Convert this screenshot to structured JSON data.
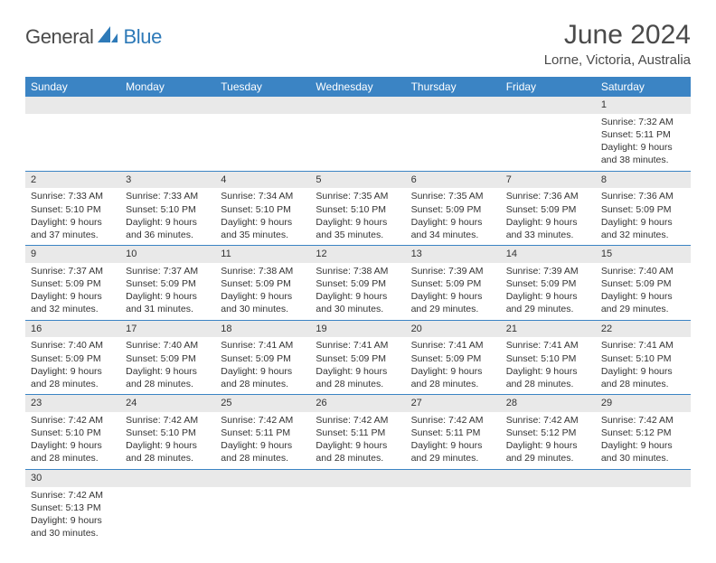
{
  "logo": {
    "general": "General",
    "blue": "Blue"
  },
  "header": {
    "month": "June 2024",
    "location": "Lorne, Victoria, Australia"
  },
  "colors": {
    "header_bg": "#3b84c4",
    "header_text": "#ffffff",
    "daynum_bg": "#e9e9e9",
    "border": "#3b84c4",
    "text": "#333333",
    "logo_gray": "#4a4a4a",
    "logo_blue": "#2e7ab8"
  },
  "weekdays": [
    "Sunday",
    "Monday",
    "Tuesday",
    "Wednesday",
    "Thursday",
    "Friday",
    "Saturday"
  ],
  "weeks": [
    [
      null,
      null,
      null,
      null,
      null,
      null,
      {
        "n": "1",
        "sr": "Sunrise: 7:32 AM",
        "ss": "Sunset: 5:11 PM",
        "d1": "Daylight: 9 hours",
        "d2": "and 38 minutes."
      }
    ],
    [
      {
        "n": "2",
        "sr": "Sunrise: 7:33 AM",
        "ss": "Sunset: 5:10 PM",
        "d1": "Daylight: 9 hours",
        "d2": "and 37 minutes."
      },
      {
        "n": "3",
        "sr": "Sunrise: 7:33 AM",
        "ss": "Sunset: 5:10 PM",
        "d1": "Daylight: 9 hours",
        "d2": "and 36 minutes."
      },
      {
        "n": "4",
        "sr": "Sunrise: 7:34 AM",
        "ss": "Sunset: 5:10 PM",
        "d1": "Daylight: 9 hours",
        "d2": "and 35 minutes."
      },
      {
        "n": "5",
        "sr": "Sunrise: 7:35 AM",
        "ss": "Sunset: 5:10 PM",
        "d1": "Daylight: 9 hours",
        "d2": "and 35 minutes."
      },
      {
        "n": "6",
        "sr": "Sunrise: 7:35 AM",
        "ss": "Sunset: 5:09 PM",
        "d1": "Daylight: 9 hours",
        "d2": "and 34 minutes."
      },
      {
        "n": "7",
        "sr": "Sunrise: 7:36 AM",
        "ss": "Sunset: 5:09 PM",
        "d1": "Daylight: 9 hours",
        "d2": "and 33 minutes."
      },
      {
        "n": "8",
        "sr": "Sunrise: 7:36 AM",
        "ss": "Sunset: 5:09 PM",
        "d1": "Daylight: 9 hours",
        "d2": "and 32 minutes."
      }
    ],
    [
      {
        "n": "9",
        "sr": "Sunrise: 7:37 AM",
        "ss": "Sunset: 5:09 PM",
        "d1": "Daylight: 9 hours",
        "d2": "and 32 minutes."
      },
      {
        "n": "10",
        "sr": "Sunrise: 7:37 AM",
        "ss": "Sunset: 5:09 PM",
        "d1": "Daylight: 9 hours",
        "d2": "and 31 minutes."
      },
      {
        "n": "11",
        "sr": "Sunrise: 7:38 AM",
        "ss": "Sunset: 5:09 PM",
        "d1": "Daylight: 9 hours",
        "d2": "and 30 minutes."
      },
      {
        "n": "12",
        "sr": "Sunrise: 7:38 AM",
        "ss": "Sunset: 5:09 PM",
        "d1": "Daylight: 9 hours",
        "d2": "and 30 minutes."
      },
      {
        "n": "13",
        "sr": "Sunrise: 7:39 AM",
        "ss": "Sunset: 5:09 PM",
        "d1": "Daylight: 9 hours",
        "d2": "and 29 minutes."
      },
      {
        "n": "14",
        "sr": "Sunrise: 7:39 AM",
        "ss": "Sunset: 5:09 PM",
        "d1": "Daylight: 9 hours",
        "d2": "and 29 minutes."
      },
      {
        "n": "15",
        "sr": "Sunrise: 7:40 AM",
        "ss": "Sunset: 5:09 PM",
        "d1": "Daylight: 9 hours",
        "d2": "and 29 minutes."
      }
    ],
    [
      {
        "n": "16",
        "sr": "Sunrise: 7:40 AM",
        "ss": "Sunset: 5:09 PM",
        "d1": "Daylight: 9 hours",
        "d2": "and 28 minutes."
      },
      {
        "n": "17",
        "sr": "Sunrise: 7:40 AM",
        "ss": "Sunset: 5:09 PM",
        "d1": "Daylight: 9 hours",
        "d2": "and 28 minutes."
      },
      {
        "n": "18",
        "sr": "Sunrise: 7:41 AM",
        "ss": "Sunset: 5:09 PM",
        "d1": "Daylight: 9 hours",
        "d2": "and 28 minutes."
      },
      {
        "n": "19",
        "sr": "Sunrise: 7:41 AM",
        "ss": "Sunset: 5:09 PM",
        "d1": "Daylight: 9 hours",
        "d2": "and 28 minutes."
      },
      {
        "n": "20",
        "sr": "Sunrise: 7:41 AM",
        "ss": "Sunset: 5:09 PM",
        "d1": "Daylight: 9 hours",
        "d2": "and 28 minutes."
      },
      {
        "n": "21",
        "sr": "Sunrise: 7:41 AM",
        "ss": "Sunset: 5:10 PM",
        "d1": "Daylight: 9 hours",
        "d2": "and 28 minutes."
      },
      {
        "n": "22",
        "sr": "Sunrise: 7:41 AM",
        "ss": "Sunset: 5:10 PM",
        "d1": "Daylight: 9 hours",
        "d2": "and 28 minutes."
      }
    ],
    [
      {
        "n": "23",
        "sr": "Sunrise: 7:42 AM",
        "ss": "Sunset: 5:10 PM",
        "d1": "Daylight: 9 hours",
        "d2": "and 28 minutes."
      },
      {
        "n": "24",
        "sr": "Sunrise: 7:42 AM",
        "ss": "Sunset: 5:10 PM",
        "d1": "Daylight: 9 hours",
        "d2": "and 28 minutes."
      },
      {
        "n": "25",
        "sr": "Sunrise: 7:42 AM",
        "ss": "Sunset: 5:11 PM",
        "d1": "Daylight: 9 hours",
        "d2": "and 28 minutes."
      },
      {
        "n": "26",
        "sr": "Sunrise: 7:42 AM",
        "ss": "Sunset: 5:11 PM",
        "d1": "Daylight: 9 hours",
        "d2": "and 28 minutes."
      },
      {
        "n": "27",
        "sr": "Sunrise: 7:42 AM",
        "ss": "Sunset: 5:11 PM",
        "d1": "Daylight: 9 hours",
        "d2": "and 29 minutes."
      },
      {
        "n": "28",
        "sr": "Sunrise: 7:42 AM",
        "ss": "Sunset: 5:12 PM",
        "d1": "Daylight: 9 hours",
        "d2": "and 29 minutes."
      },
      {
        "n": "29",
        "sr": "Sunrise: 7:42 AM",
        "ss": "Sunset: 5:12 PM",
        "d1": "Daylight: 9 hours",
        "d2": "and 30 minutes."
      }
    ],
    [
      {
        "n": "30",
        "sr": "Sunrise: 7:42 AM",
        "ss": "Sunset: 5:13 PM",
        "d1": "Daylight: 9 hours",
        "d2": "and 30 minutes."
      },
      null,
      null,
      null,
      null,
      null,
      null
    ]
  ]
}
